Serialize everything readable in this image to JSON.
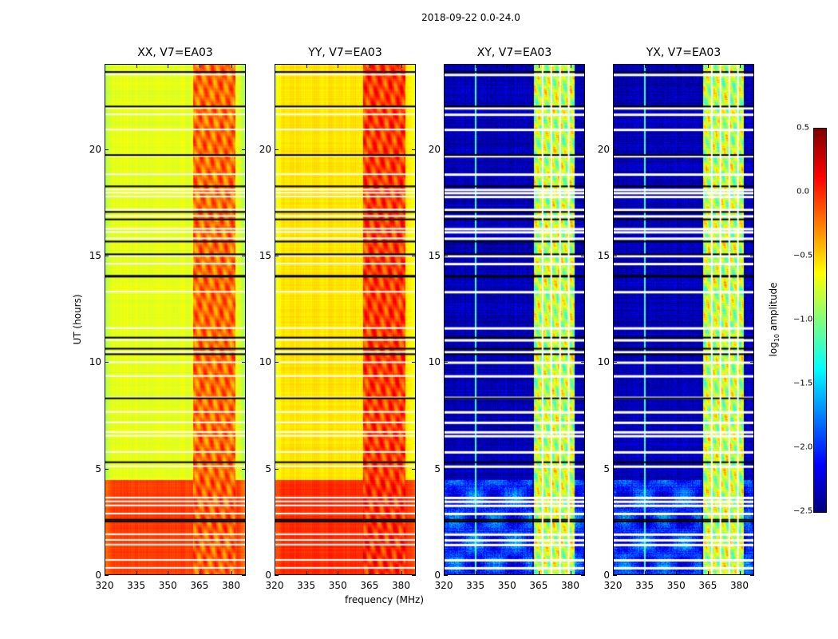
{
  "chart_data": {
    "type": "heatmap",
    "title": "2018-09-22 0.0-24.0",
    "xlabel": "frequency (MHz)",
    "ylabel": "UT (hours)",
    "xlim": [
      320,
      387
    ],
    "ylim": [
      0,
      24
    ],
    "xticks": [
      "320",
      "335",
      "350",
      "365",
      "380"
    ],
    "yticks": [
      "0",
      "5",
      "10",
      "15",
      "20"
    ],
    "panels": [
      {
        "title": "XX, V7=EA03",
        "background_log_amp": -0.7,
        "early_log_amp": -0.05,
        "band_log_amp": -0.2
      },
      {
        "title": "YY, V7=EA03",
        "background_log_amp": -0.55,
        "early_log_amp": 0.0,
        "band_log_amp": -0.05
      },
      {
        "title": "XY, V7=EA03",
        "background_log_amp": -2.35,
        "early_log_amp": -2.0,
        "band_log_amp": -0.8
      },
      {
        "title": "YX, V7=EA03",
        "background_log_amp": -2.35,
        "early_log_amp": -2.0,
        "band_log_amp": -0.8
      }
    ],
    "band_MHz": [
      362,
      382
    ],
    "change_hour": 4.5,
    "flagged_hours": [
      23.5,
      21.93,
      21.63,
      20.92,
      19.68,
      18.82,
      18.1,
      17.95,
      17.77,
      17.16,
      16.86,
      16.26,
      16.11,
      15.81,
      14.99,
      14.62,
      13.3,
      11.6,
      11.04,
      10.48,
      9.99,
      9.35,
      8.34,
      7.66,
      7.17,
      6.72,
      6.54,
      5.78,
      5.11,
      3.64,
      3.46,
      3.27,
      2.89,
      1.92,
      1.65,
      1.43,
      0.71,
      0.34
    ],
    "scan_boundaries_hours": [
      23.62,
      22.0,
      19.72,
      18.25,
      17.05,
      16.7,
      15.66,
      15.06,
      14.05,
      11.15,
      10.63,
      10.37,
      8.3,
      5.3,
      2.6,
      2.52
    ],
    "colorbar": {
      "label": "log10 amplitude",
      "label_main": "log",
      "label_sub": "10",
      "label_rest": " amplitude",
      "range": [
        -2.5,
        0.5
      ],
      "ticks": [
        "0.5",
        "0.0",
        "−0.5",
        "−1.0",
        "−1.5",
        "−2.0",
        "−2.5"
      ],
      "colormap": "jet"
    }
  }
}
